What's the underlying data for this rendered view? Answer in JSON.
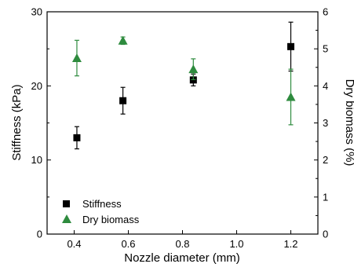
{
  "chart_data": {
    "type": "scatter",
    "xlabel": "Nozzle diameter (mm)",
    "ylabel": "Stiffness (kPa)",
    "y2label": "Dry biomass (%)",
    "xlim": [
      0.3,
      1.3
    ],
    "ylim": [
      0,
      30
    ],
    "y2lim": [
      0,
      6
    ],
    "x_ticks": [
      "0.4",
      "0.6",
      "0.8",
      "1.0",
      "1.2"
    ],
    "y_ticks": [
      "0",
      "10",
      "20",
      "30"
    ],
    "y2_ticks": [
      "0",
      "1",
      "2",
      "3",
      "4",
      "5",
      "6"
    ],
    "grid": false,
    "legend_position": "bottom-left",
    "series": [
      {
        "name": "Stiffness",
        "axis": "left",
        "marker": "square",
        "color": "#000000",
        "x": [
          0.41,
          0.58,
          0.84,
          1.2
        ],
        "y": [
          13.0,
          18.0,
          20.8,
          25.3
        ],
        "err": [
          1.5,
          1.8,
          0.8,
          3.3
        ]
      },
      {
        "name": "Dry biomass",
        "axis": "right",
        "marker": "triangle",
        "color": "#2e8b3e",
        "x": [
          0.41,
          0.58,
          0.84,
          1.2
        ],
        "y": [
          4.75,
          5.22,
          4.45,
          3.7
        ],
        "err": [
          0.48,
          0.1,
          0.28,
          0.75
        ]
      }
    ]
  }
}
